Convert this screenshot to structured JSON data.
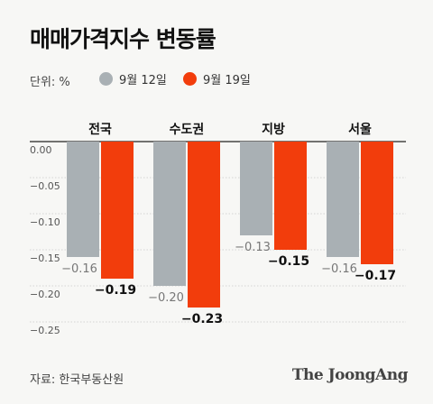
{
  "header": {
    "title": "매매가격지수 변동률"
  },
  "unit_label": "단위: %",
  "legend": [
    {
      "label": "9월 12일",
      "color": "#a9b0b4"
    },
    {
      "label": "9월 19일",
      "color": "#f23d0c"
    }
  ],
  "chart_data": {
    "type": "bar",
    "title": "매매가격지수 변동률",
    "categories": [
      "전국",
      "수도권",
      "지방",
      "서울"
    ],
    "series": [
      {
        "name": "9월 12일",
        "color": "#a9b0b4",
        "values": [
          -0.16,
          -0.2,
          -0.13,
          -0.16
        ],
        "labels": [
          "−0.16",
          "−0.20",
          "−0.13",
          "−0.16"
        ]
      },
      {
        "name": "9월 19일",
        "color": "#f23d0c",
        "values": [
          -0.19,
          -0.23,
          -0.15,
          -0.17
        ],
        "labels": [
          "−0.19",
          "−0.23",
          "−0.15",
          "−0.17"
        ]
      }
    ],
    "y_ticks": [
      0,
      -0.05,
      -0.1,
      -0.15,
      -0.2,
      -0.25
    ],
    "y_tick_labels": [
      "0.00",
      "−0.05",
      "−0.10",
      "−0.15",
      "−0.20",
      "−0.25"
    ],
    "ylim": [
      -0.25,
      0
    ],
    "grid": true,
    "legend_position": "top-left"
  },
  "footer": {
    "source": "자료: 한국부동산원",
    "brand": "The JoongAng"
  }
}
